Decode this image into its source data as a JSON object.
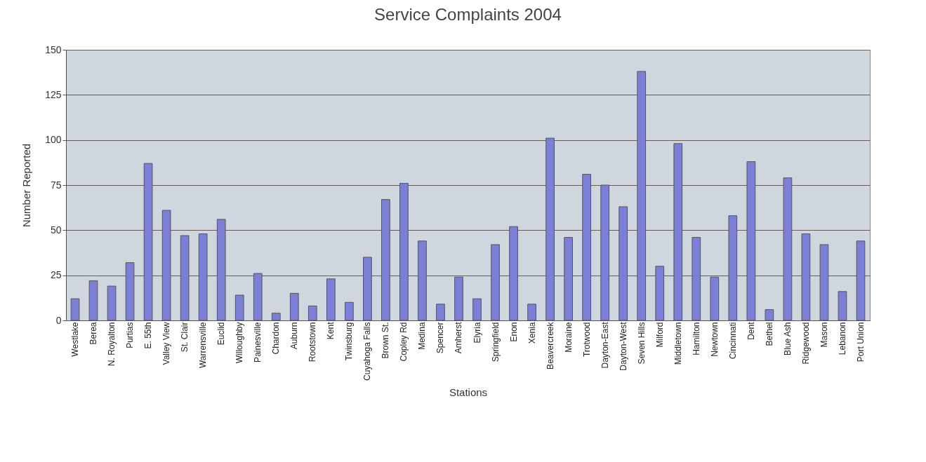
{
  "chart_data": {
    "type": "bar",
    "title": "Service Complaints 2004",
    "xlabel": "Stations",
    "ylabel": "Number Reported",
    "categories": [
      "Westlake",
      "Berea",
      "N. Royalton",
      "Purtias",
      "E. 55th",
      "Valley View",
      "St. Clair",
      "Warrensville",
      "Euclid",
      "Willoughby",
      "Painesville",
      "Chardon",
      "Auburn",
      "Rootstown",
      "Kent",
      "Twinsburg",
      "Cuyahoga Falls",
      "Brown St.",
      "Copley Rd",
      "Medina",
      "Spencer",
      "Amherst",
      "Elyria",
      "Springfield",
      "Enon",
      "Xenia",
      "Beavercreek",
      "Moraine",
      "Trotwood",
      "Dayton-East",
      "Dayton-West",
      "Seven Hills",
      "Milford",
      "Middletown",
      "Hamilton",
      "Newtown",
      "Cincinnati",
      "Dent",
      "Bethel",
      "Blue Ash",
      "Ridgewood",
      "Mason",
      "Lebanon",
      "Port Union"
    ],
    "values": [
      12,
      22,
      19,
      32,
      87,
      61,
      47,
      48,
      56,
      14,
      26,
      4,
      15,
      8,
      23,
      10,
      35,
      67,
      76,
      44,
      9,
      24,
      12,
      42,
      52,
      9,
      101,
      46,
      81,
      75,
      63,
      138,
      30,
      98,
      46,
      24,
      58,
      88,
      6,
      79,
      48,
      42,
      16,
      44
    ],
    "color": "#7b80d6",
    "ylim": [
      0,
      150
    ],
    "yticks": [
      0,
      25,
      50,
      75,
      100,
      125,
      150
    ],
    "grid": "y"
  }
}
